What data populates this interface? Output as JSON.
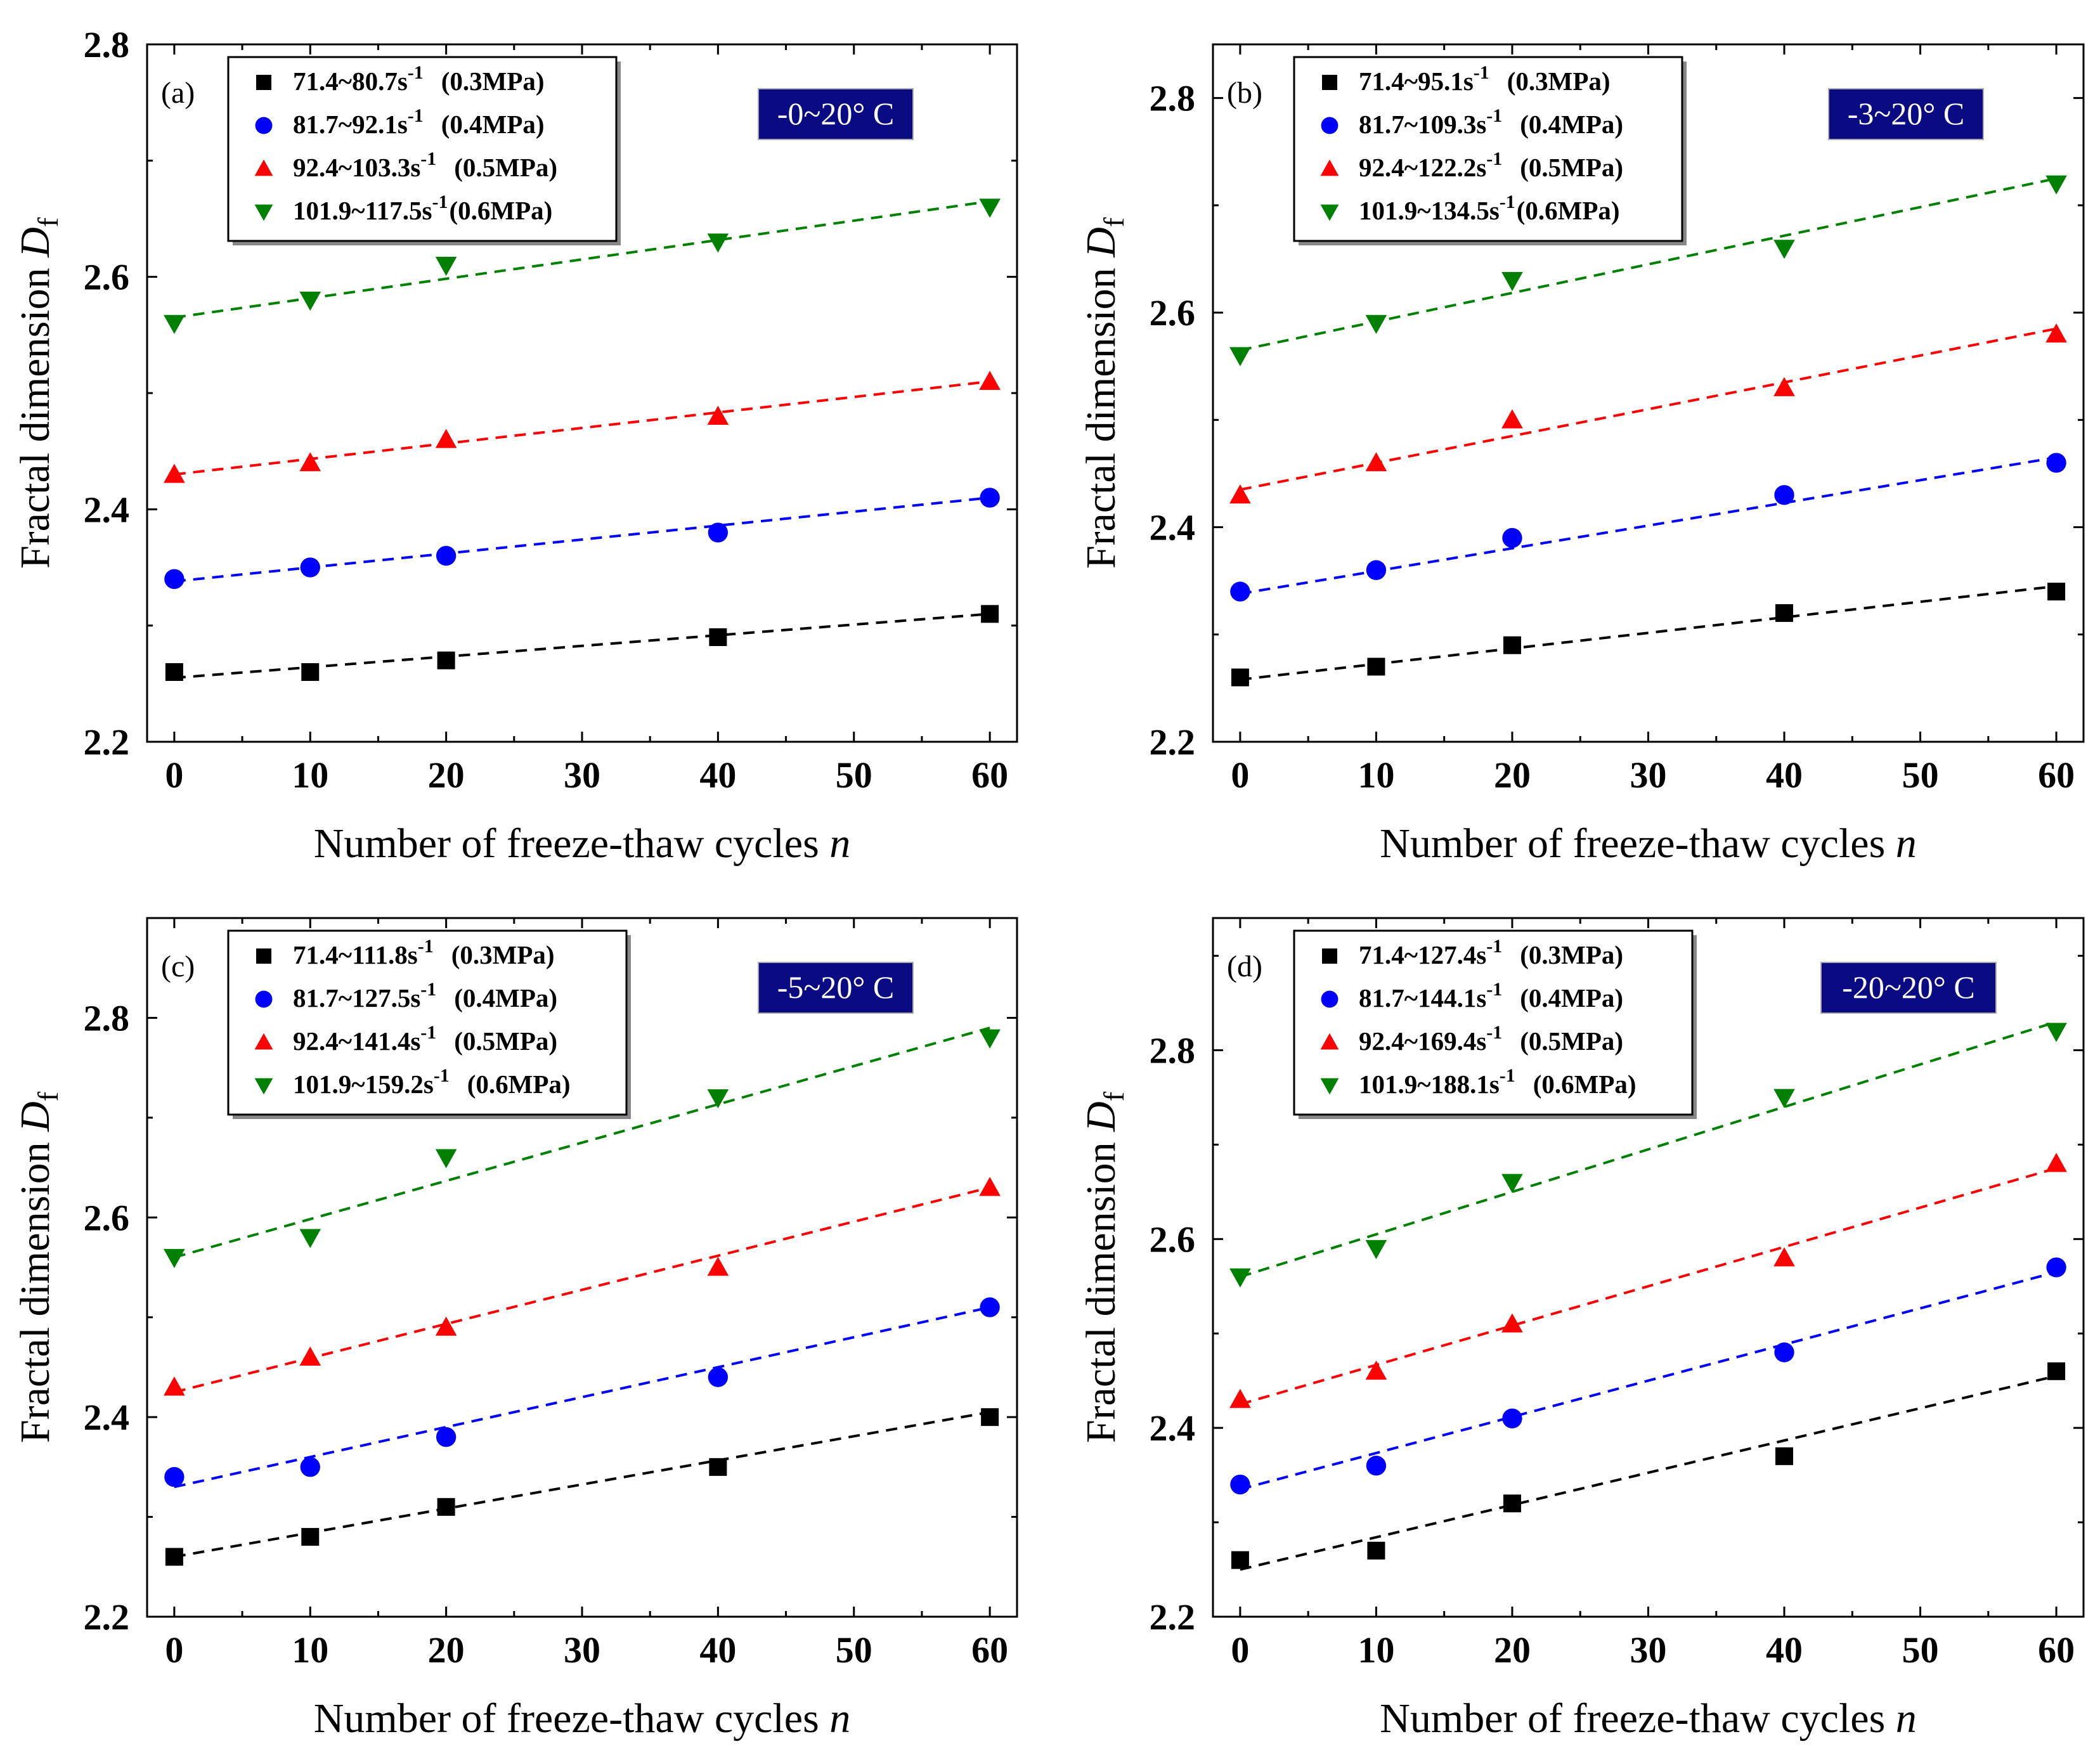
{
  "chart_data": [
    {
      "type": "scatter",
      "panel": "(a)",
      "condition_label": "-0~20° C",
      "xlabel": "Number of freeze-thaw cycles n",
      "ylabel": "Fractal dimension Df",
      "xlim": [
        -2,
        62
      ],
      "ylim": [
        2.2,
        2.8
      ],
      "xticks": [
        0,
        10,
        20,
        30,
        40,
        50,
        60
      ],
      "yticks": [
        2.2,
        2.4,
        2.6,
        2.8
      ],
      "x": [
        0,
        10,
        20,
        40,
        60
      ],
      "series": [
        {
          "name": "71.4~80.7s-1 (0.3MPa)",
          "rate": "71.4~80.7s",
          "pressure": "(0.3MPa)",
          "marker": "square",
          "color": "#000000",
          "values": [
            2.26,
            2.26,
            2.27,
            2.29,
            2.31
          ],
          "fit": [
            2.255,
            2.31
          ]
        },
        {
          "name": "81.7~92.1s-1 (0.4MPa)",
          "rate": "81.7~92.1s",
          "pressure": "(0.4MPa)",
          "marker": "circle",
          "color": "#0000ff",
          "values": [
            2.34,
            2.35,
            2.36,
            2.38,
            2.41
          ],
          "fit": [
            2.338,
            2.41
          ]
        },
        {
          "name": "92.4~103.3s-1 (0.5MPa)",
          "rate": "92.4~103.3s",
          "pressure": "(0.5MPa)",
          "marker": "triangle-up",
          "color": "#ff0000",
          "values": [
            2.43,
            2.44,
            2.46,
            2.48,
            2.51
          ],
          "fit": [
            2.43,
            2.51
          ]
        },
        {
          "name": "101.9~117.5s-1(0.6MPa)",
          "rate": "101.9~117.5s",
          "pressure": "(0.6MPa)",
          "marker": "triangle-down",
          "color": "#008000",
          "values": [
            2.56,
            2.58,
            2.61,
            2.63,
            2.66
          ],
          "fit": [
            2.565,
            2.665
          ]
        }
      ]
    },
    {
      "type": "scatter",
      "panel": "(b)",
      "condition_label": "-3~20° C",
      "xlabel": "Number of freeze-thaw cycles n",
      "ylabel": "Fractal dimension Df",
      "xlim": [
        -2,
        62
      ],
      "ylim": [
        2.2,
        2.85
      ],
      "xticks": [
        0,
        10,
        20,
        30,
        40,
        50,
        60
      ],
      "yticks": [
        2.2,
        2.4,
        2.6,
        2.8
      ],
      "x": [
        0,
        10,
        20,
        40,
        60
      ],
      "series": [
        {
          "name": "71.4~95.1s-1 (0.3MPa)",
          "rate": "71.4~95.1s",
          "pressure": "(0.3MPa)",
          "marker": "square",
          "color": "#000000",
          "values": [
            2.26,
            2.27,
            2.29,
            2.32,
            2.34
          ],
          "fit": [
            2.258,
            2.345
          ]
        },
        {
          "name": "81.7~109.3s-1 (0.4MPa)",
          "rate": "81.7~109.3s",
          "pressure": "(0.4MPa)",
          "marker": "circle",
          "color": "#0000ff",
          "values": [
            2.34,
            2.36,
            2.39,
            2.43,
            2.46
          ],
          "fit": [
            2.338,
            2.465
          ]
        },
        {
          "name": "92.4~122.2s-1 (0.5MPa)",
          "rate": "92.4~122.2s",
          "pressure": "(0.5MPa)",
          "marker": "triangle-up",
          "color": "#ff0000",
          "values": [
            2.43,
            2.46,
            2.5,
            2.53,
            2.58
          ],
          "fit": [
            2.435,
            2.585
          ]
        },
        {
          "name": "101.9~134.5s-1(0.6MPa)",
          "rate": "101.9~134.5s",
          "pressure": "(0.6MPa)",
          "marker": "triangle-down",
          "color": "#008000",
          "values": [
            2.56,
            2.59,
            2.63,
            2.66,
            2.72
          ],
          "fit": [
            2.565,
            2.725
          ]
        }
      ]
    },
    {
      "type": "scatter",
      "panel": "(c)",
      "condition_label": "-5~20° C",
      "xlabel": "Number of freeze-thaw cycles n",
      "ylabel": "Fractal dimension Df",
      "xlim": [
        -2,
        62
      ],
      "ylim": [
        2.2,
        2.9
      ],
      "xticks": [
        0,
        10,
        20,
        30,
        40,
        50,
        60
      ],
      "yticks": [
        2.2,
        2.4,
        2.6,
        2.8
      ],
      "x": [
        0,
        10,
        20,
        40,
        60
      ],
      "series": [
        {
          "name": "71.4~111.8s-1 (0.3MPa)",
          "rate": "71.4~111.8s",
          "pressure": "(0.3MPa)",
          "marker": "square",
          "color": "#000000",
          "values": [
            2.26,
            2.28,
            2.31,
            2.35,
            2.4
          ],
          "fit": [
            2.26,
            2.405
          ]
        },
        {
          "name": "81.7~127.5s-1 (0.4MPa)",
          "rate": "81.7~127.5s",
          "pressure": "(0.4MPa)",
          "marker": "circle",
          "color": "#0000ff",
          "values": [
            2.34,
            2.35,
            2.38,
            2.44,
            2.51
          ],
          "fit": [
            2.33,
            2.51
          ]
        },
        {
          "name": "92.4~141.4s-1 (0.5MPa)",
          "rate": "92.4~141.4s",
          "pressure": "(0.5MPa)",
          "marker": "triangle-up",
          "color": "#ff0000",
          "values": [
            2.43,
            2.46,
            2.49,
            2.55,
            2.63
          ],
          "fit": [
            2.425,
            2.63
          ]
        },
        {
          "name": "101.9~159.2s-1 (0.6MPa)",
          "rate": "101.9~159.2s",
          "pressure": "(0.6MPa)",
          "marker": "triangle-down",
          "color": "#008000",
          "values": [
            2.56,
            2.58,
            2.66,
            2.72,
            2.78
          ],
          "fit": [
            2.56,
            2.79
          ]
        }
      ]
    },
    {
      "type": "scatter",
      "panel": "(d)",
      "condition_label": "-20~20° C",
      "xlabel": "Number of freeze-thaw cycles n",
      "ylabel": "Fractal dimension Df",
      "xlim": [
        -2,
        62
      ],
      "ylim": [
        2.2,
        2.94
      ],
      "xticks": [
        0,
        10,
        20,
        30,
        40,
        50,
        60
      ],
      "yticks": [
        2.2,
        2.4,
        2.6,
        2.8
      ],
      "x": [
        0,
        10,
        20,
        40,
        60
      ],
      "series": [
        {
          "name": "71.4~127.4s-1 (0.3MPa)",
          "rate": "71.4~127.4s",
          "pressure": "(0.3MPa)",
          "marker": "square",
          "color": "#000000",
          "values": [
            2.26,
            2.27,
            2.32,
            2.37,
            2.46
          ],
          "fit": [
            2.25,
            2.455
          ]
        },
        {
          "name": "81.7~144.1s-1 (0.4MPa)",
          "rate": "81.7~144.1s",
          "pressure": "(0.4MPa)",
          "marker": "circle",
          "color": "#0000ff",
          "values": [
            2.34,
            2.36,
            2.41,
            2.48,
            2.57
          ],
          "fit": [
            2.335,
            2.565
          ]
        },
        {
          "name": "92.4~169.4s-1 (0.5MPa)",
          "rate": "92.4~169.4s",
          "pressure": "(0.5MPa)",
          "marker": "triangle-up",
          "color": "#ff0000",
          "values": [
            2.43,
            2.46,
            2.51,
            2.58,
            2.68
          ],
          "fit": [
            2.425,
            2.675
          ]
        },
        {
          "name": "101.9~188.1s-1 (0.6MPa)",
          "rate": "101.9~188.1s",
          "pressure": "(0.6MPa)",
          "marker": "triangle-down",
          "color": "#008000",
          "values": [
            2.56,
            2.59,
            2.66,
            2.75,
            2.82
          ],
          "fit": [
            2.56,
            2.83
          ]
        }
      ]
    }
  ]
}
